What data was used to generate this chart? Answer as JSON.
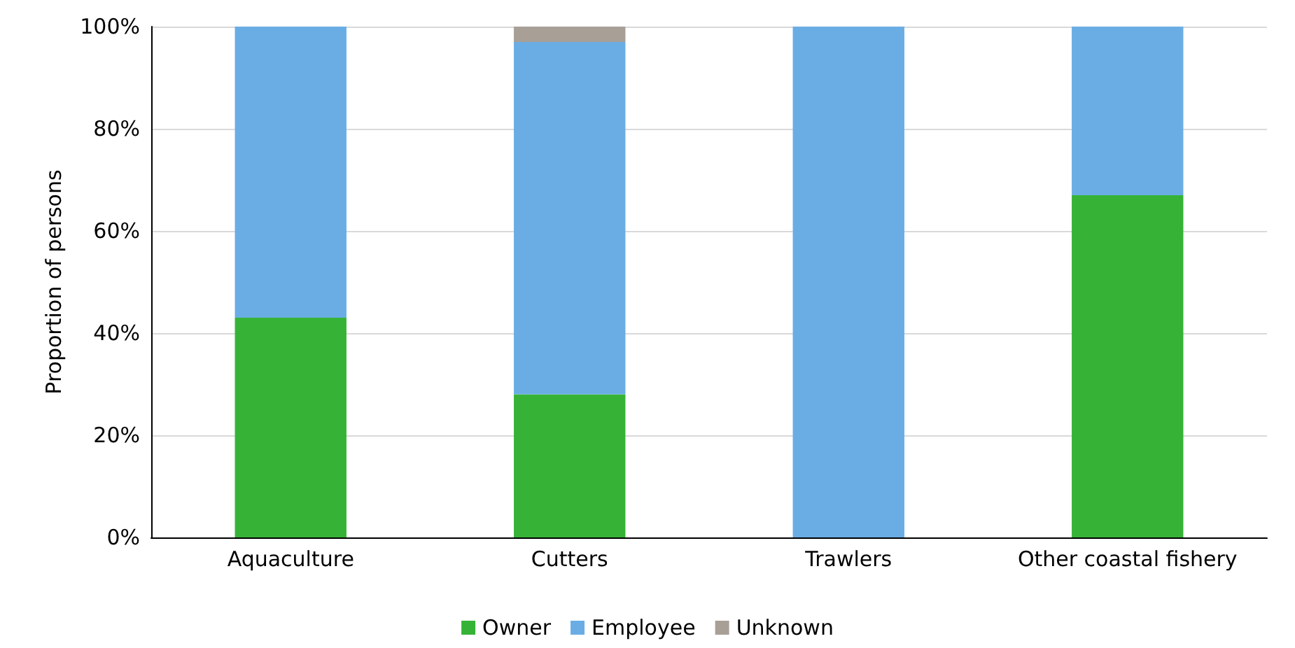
{
  "chart_data": {
    "type": "bar",
    "stacked": true,
    "ylabel": "Proportion of persons",
    "categories": [
      "Aquaculture",
      "Cutters",
      "Trawlers",
      "Other coastal fishery"
    ],
    "series": [
      {
        "name": "Owner",
        "color": "#36b336",
        "values": [
          43,
          28,
          0,
          67
        ]
      },
      {
        "name": "Employee",
        "color": "#6aade4",
        "values": [
          57,
          69,
          100,
          33
        ]
      },
      {
        "name": "Unknown",
        "color": "#a89f97",
        "values": [
          0,
          3,
          0,
          0
        ]
      }
    ],
    "ylim": [
      0,
      100
    ],
    "yticks": [
      {
        "value": 0,
        "label": "0%"
      },
      {
        "value": 20,
        "label": "20%"
      },
      {
        "value": 40,
        "label": "40%"
      },
      {
        "value": 60,
        "label": "60%"
      },
      {
        "value": 80,
        "label": "80%"
      },
      {
        "value": 100,
        "label": "100%"
      }
    ],
    "grid": "y",
    "legend": "bottom"
  }
}
